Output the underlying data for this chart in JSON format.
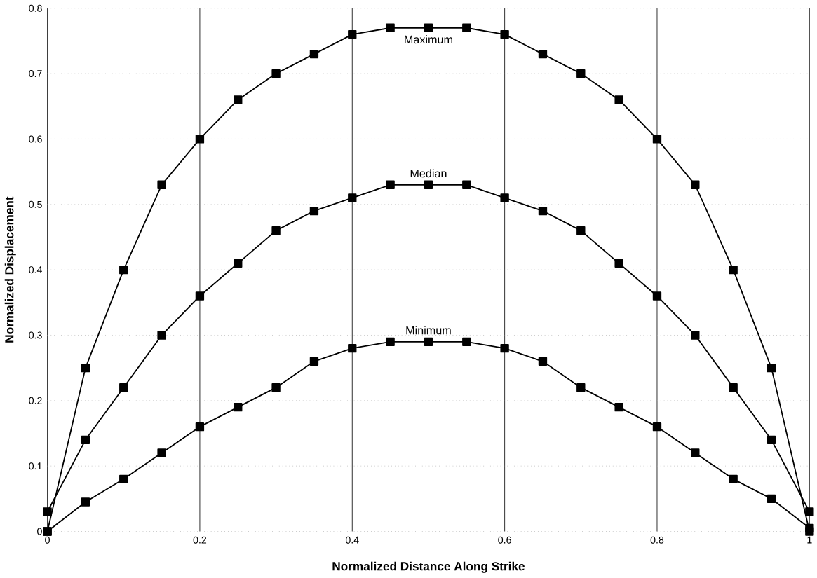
{
  "chart_data": {
    "type": "line",
    "xlabel": "Normalized Distance Along Strike",
    "ylabel": "Normalized Displacement",
    "x": [
      0,
      0.05,
      0.1,
      0.15,
      0.2,
      0.25,
      0.3,
      0.35,
      0.4,
      0.45,
      0.5,
      0.55,
      0.6,
      0.65,
      0.7,
      0.75,
      0.8,
      0.85,
      0.9,
      0.95,
      1
    ],
    "series": [
      {
        "name": "Maximum",
        "color": "#000000",
        "values": [
          0,
          0.25,
          0.4,
          0.53,
          0.6,
          0.66,
          0.7,
          0.73,
          0.76,
          0.77,
          0.77,
          0.77,
          0.76,
          0.73,
          0.7,
          0.66,
          0.6,
          0.53,
          0.4,
          0.25,
          0
        ]
      },
      {
        "name": "Median",
        "color": "#000000",
        "values": [
          0.03,
          0.14,
          0.22,
          0.3,
          0.36,
          0.41,
          0.46,
          0.49,
          0.51,
          0.53,
          0.53,
          0.53,
          0.51,
          0.49,
          0.46,
          0.41,
          0.36,
          0.3,
          0.22,
          0.14,
          0.03
        ]
      },
      {
        "name": "Minimum",
        "color": "#000000",
        "values": [
          0,
          0.045,
          0.08,
          0.12,
          0.16,
          0.19,
          0.22,
          0.26,
          0.28,
          0.29,
          0.29,
          0.29,
          0.28,
          0.26,
          0.22,
          0.19,
          0.16,
          0.12,
          0.08,
          0.05,
          0.005
        ]
      }
    ],
    "xlim": [
      0,
      1
    ],
    "ylim": [
      0,
      0.8
    ],
    "xticks": [
      0,
      0.2,
      0.4,
      0.6,
      0.8,
      1
    ],
    "yticks": [
      0,
      0.1,
      0.2,
      0.3,
      0.4,
      0.5,
      0.6,
      0.7,
      0.8
    ],
    "grid": true,
    "marker": "square",
    "line_style": "solid"
  }
}
